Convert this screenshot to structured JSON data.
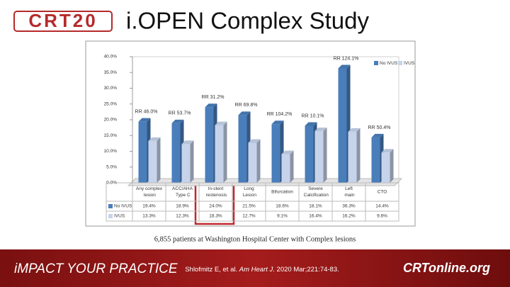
{
  "header": {
    "logo": "CRT20",
    "title": "i.OPEN Complex Study"
  },
  "chart_data": {
    "type": "bar",
    "categories": [
      "Any complex lesion",
      "ACC/AHA Type C",
      "In-stent restenosis",
      "Long Lesion",
      "Bifurcation",
      "Severe Calcification",
      "Left main",
      "CTO"
    ],
    "series": [
      {
        "name": "No IVUS",
        "color": "#4a7ebb",
        "values": [
          19.4,
          18.9,
          24.0,
          21.5,
          18.6,
          18.1,
          36.3,
          14.4
        ],
        "value_labels": [
          "19.4%",
          "18.9%",
          "24.0%",
          "21.5%",
          "18.6%",
          "18.1%",
          "36.3%",
          "14.4%"
        ]
      },
      {
        "name": "IVUS",
        "color": "#c6d3ea",
        "values": [
          13.3,
          12.3,
          18.3,
          12.7,
          9.1,
          16.4,
          16.2,
          9.6
        ],
        "value_labels": [
          "13.3%",
          "12.3%",
          "18.3%",
          "12.7%",
          "9.1%",
          "16.4%",
          "16.2%",
          "9.6%"
        ]
      }
    ],
    "annotations": [
      "RR 46.0%",
      "RR 53.7%",
      "RR 31.2%",
      "RR 69.8%",
      "RR 104.2%",
      "RR 10.1%",
      "RR 124.1%",
      "RR 50.4%"
    ],
    "ylim": [
      0,
      40
    ],
    "yticks": [
      {
        "value": 0,
        "label": "0.0%"
      },
      {
        "value": 5,
        "label": "5.0%"
      },
      {
        "value": 10,
        "label": "10.0%"
      },
      {
        "value": 15,
        "label": "15.0%"
      },
      {
        "value": 20,
        "label": "20.0%"
      },
      {
        "value": 25,
        "label": "25.0%"
      },
      {
        "value": 30,
        "label": "30.0%"
      },
      {
        "value": 35,
        "label": "35.0%"
      },
      {
        "value": 40,
        "label": "40.0%"
      }
    ],
    "grid": false,
    "legend": "top-right"
  },
  "caption": "6,855 patients at Washington Hospital Center with Complex lesions",
  "footer": {
    "tagline": "iMPACT YOUR PRACTICE",
    "citation": [
      "Shlofmitz E, et al. ",
      "Am Heart J",
      ". 2020 Mar;221:74-83."
    ],
    "site": "CRTonline.org"
  }
}
